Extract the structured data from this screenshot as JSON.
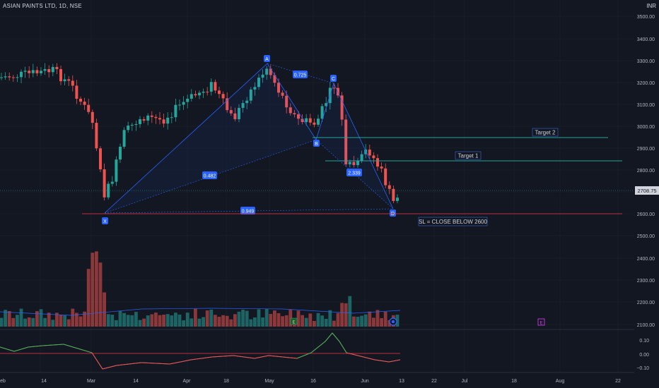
{
  "header": {
    "symbol_title": "ASIAN PAINTS LTD, 1D, NSE",
    "currency": "INR"
  },
  "price_axis": {
    "labels": [
      "3500.00",
      "3400.00",
      "3300.00",
      "3200.00",
      "3100.00",
      "3000.00",
      "2900.00",
      "2800.00",
      "2700.00",
      "2600.00",
      "2500.00",
      "2400.00",
      "2300.00",
      "2200.00",
      "2100.00"
    ],
    "last_price": "2708.75"
  },
  "oscillator_axis": {
    "labels": [
      "0.10",
      "0.00",
      "−0.10"
    ]
  },
  "time_axis": {
    "labels": [
      "eb",
      "14",
      "Mar",
      "14",
      "Apr",
      "18",
      "May",
      "16",
      "Jun",
      "13",
      "22",
      "Jul",
      "18",
      "Aug",
      "22"
    ]
  },
  "pattern": {
    "points": [
      "X",
      "A",
      "B",
      "C",
      "D"
    ],
    "ratios": [
      "0.482",
      "0.725",
      "2.339",
      "0.949"
    ]
  },
  "annotations": {
    "target1": "Target 1",
    "target2": "Target 2",
    "stop_loss": "SL = CLOSE BELOW 2600"
  },
  "markers": {
    "e_label": "E"
  },
  "colors": {
    "background": "#131722",
    "up": "#26a69a",
    "down": "#ef5350",
    "harmonic": "#2962ff",
    "target_line": "#26a69a",
    "sl_line": "#f23645",
    "oscillator": "#4caf50",
    "price_tag": "#d1d4dc"
  }
}
